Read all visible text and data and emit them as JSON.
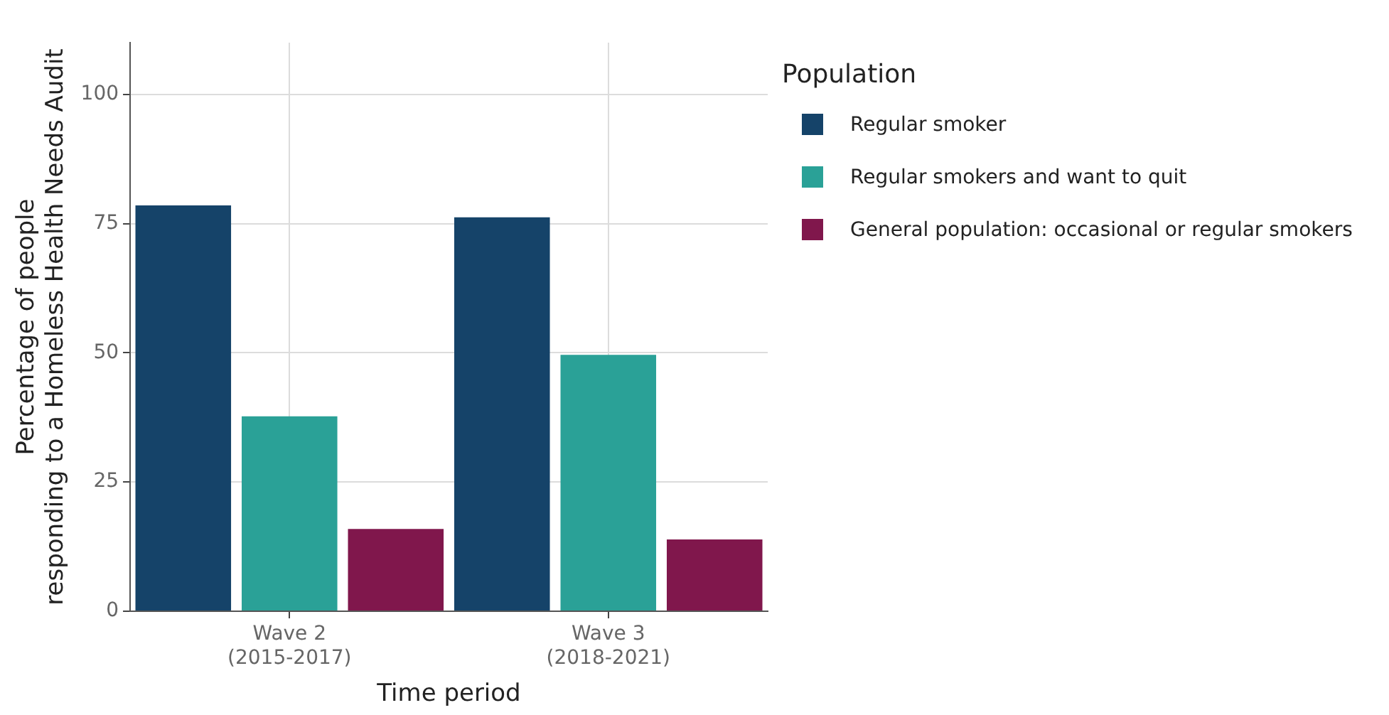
{
  "chart_data": {
    "type": "bar",
    "xlabel": "Time period",
    "ylabel": "Percentage of people\nresponding to a Homeless Health Needs Audit",
    "legend_title": "Population",
    "categories": [
      "Wave 2\n(2015-2017)",
      "Wave 3\n(2018-2021)"
    ],
    "series": [
      {
        "name": "Regular smoker",
        "color": "#154369",
        "values": [
          78.5,
          76.2
        ]
      },
      {
        "name": "Regular smokers and want to quit",
        "color": "#2aa197",
        "values": [
          37.7,
          49.6
        ]
      },
      {
        "name": "General population: occasional or regular smokers",
        "color": "#80174c",
        "values": [
          15.9,
          13.9
        ]
      }
    ],
    "ylim": [
      0,
      110
    ],
    "yticks": [
      0,
      25,
      50,
      75,
      100
    ],
    "grid": true,
    "legend": "right"
  }
}
